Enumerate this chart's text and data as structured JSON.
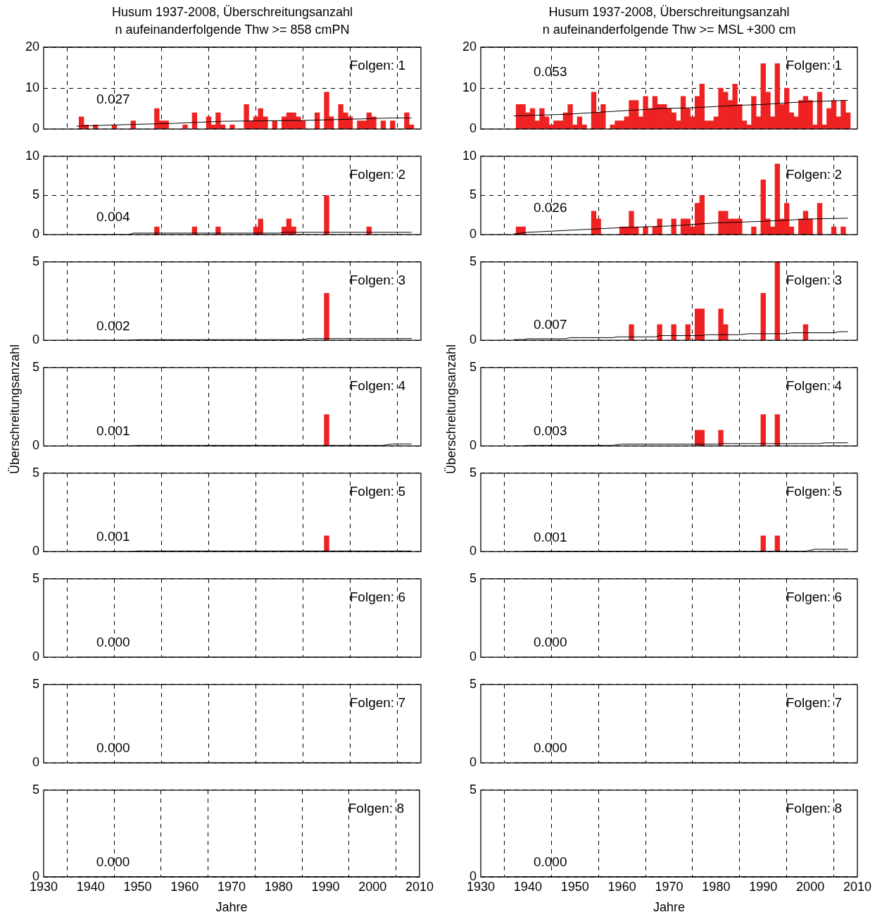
{
  "chart_data": [
    {
      "type": "bar",
      "title": "Husum 1937-2008, Überschreitungsanzahl",
      "subtitle": "n aufeinanderfolgende Thw >= 858 cmPN",
      "series": [
        {
          "type": "bar",
          "color": "#ee2222",
          "x": [
            1938,
            1939,
            1941,
            1945,
            1949,
            1954,
            1955,
            1956,
            1960,
            1962,
            1965,
            1966,
            1967,
            1968,
            1970,
            1973,
            1974,
            1975,
            1976,
            1977,
            1979,
            1981,
            1982,
            1983,
            1984,
            1985,
            1988,
            1990,
            1991,
            1993,
            1994,
            1995,
            1997,
            1998,
            1999,
            2000,
            2002,
            2004,
            2007,
            2008
          ],
          "values": [
            3,
            1,
            1,
            1,
            2,
            5,
            2,
            2,
            1,
            4,
            3,
            1,
            4,
            1,
            1,
            6,
            2,
            3,
            5,
            3,
            2,
            3,
            4,
            4,
            3,
            2,
            4,
            9,
            3,
            6,
            4,
            3,
            2,
            2,
            4,
            3,
            2,
            2,
            4,
            1
          ]
        },
        {
          "type": "line",
          "color": "#000000",
          "x": [
            1937,
            1948,
            1958,
            1968,
            1985,
            1995,
            2004,
            2008
          ],
          "values": [
            0.7,
            1.1,
            1.4,
            1.9,
            2.1,
            2.4,
            2.7,
            2.7
          ]
        }
      ],
      "xlim": [
        1930,
        2010
      ],
      "xticks": [
        1930,
        1940,
        1950,
        1960,
        1970,
        1980,
        1990,
        2000,
        2010
      ],
      "ylim": [
        0,
        20
      ],
      "yticks": [
        0,
        10,
        20
      ],
      "grid": true,
      "tick_labels": "y",
      "annotations": [
        "Folgen: 1",
        "0.027"
      ]
    },
    {
      "type": "bar",
      "title": "Husum 1937-2008, Überschreitungsanzahl",
      "subtitle": "n aufeinanderfolgende Thw >= MSL +300 cm",
      "series": [
        {
          "type": "bar",
          "color": "#ee2222",
          "x": [
            1938,
            1939,
            1940,
            1941,
            1942,
            1943,
            1944,
            1945,
            1946,
            1947,
            1948,
            1949,
            1950,
            1951,
            1952,
            1954,
            1955,
            1956,
            1958,
            1959,
            1960,
            1961,
            1962,
            1963,
            1964,
            1965,
            1966,
            1967,
            1968,
            1969,
            1970,
            1971,
            1972,
            1973,
            1974,
            1975,
            1976,
            1977,
            1978,
            1979,
            1980,
            1981,
            1982,
            1983,
            1984,
            1985,
            1986,
            1987,
            1988,
            1989,
            1990,
            1991,
            1992,
            1993,
            1994,
            1995,
            1996,
            1997,
            1998,
            1999,
            2000,
            2001,
            2002,
            2003,
            2004,
            2005,
            2006,
            2007,
            2008
          ],
          "values": [
            6,
            6,
            4,
            5,
            2,
            5,
            3,
            1,
            2,
            2,
            4,
            6,
            1,
            3,
            1,
            9,
            4,
            6,
            1,
            2,
            2,
            3,
            7,
            7,
            3,
            8,
            5,
            8,
            6,
            6,
            5,
            4,
            2,
            8,
            5,
            3,
            8,
            11,
            2,
            2,
            3,
            10,
            9,
            7,
            11,
            6,
            2,
            1,
            8,
            3,
            16,
            9,
            3,
            16,
            6,
            10,
            4,
            3,
            7,
            8,
            7,
            1,
            9,
            1,
            5,
            7,
            3,
            7,
            4
          ]
        },
        {
          "type": "line",
          "color": "#000000",
          "x": [
            1937,
            1948,
            1958,
            1968,
            1975,
            1980,
            1985,
            1990,
            1995,
            2000,
            2008
          ],
          "values": [
            3.2,
            3.6,
            4.3,
            5.0,
            5.2,
            5.5,
            5.8,
            6.0,
            6.4,
            6.7,
            7.0
          ]
        }
      ],
      "xlim": [
        1930,
        2010
      ],
      "xticks": [
        1930,
        1940,
        1950,
        1960,
        1970,
        1980,
        1990,
        2000,
        2010
      ],
      "ylim": [
        0,
        20
      ],
      "yticks": [
        0,
        10,
        20
      ],
      "grid": true,
      "tick_labels": "y",
      "annotations": [
        "Folgen: 1",
        "0.053"
      ]
    },
    {
      "type": "bar",
      "series": [
        {
          "type": "bar",
          "color": "#ee2222",
          "x": [
            1954,
            1962,
            1967,
            1975,
            1976,
            1981,
            1982,
            1983,
            1990,
            1999
          ],
          "values": [
            1,
            1,
            1,
            1,
            2,
            1,
            2,
            1,
            5,
            1
          ]
        },
        {
          "type": "line",
          "color": "#000000",
          "x": [
            1937,
            1948,
            1949,
            1980,
            1981,
            2008
          ],
          "values": [
            0,
            0,
            0.2,
            0.2,
            0.3,
            0.3
          ]
        }
      ],
      "xlim": [
        1930,
        2010
      ],
      "xticks": [
        1930,
        1940,
        1950,
        1960,
        1970,
        1980,
        1990,
        2000,
        2010
      ],
      "ylim": [
        0,
        10
      ],
      "yticks": [
        0,
        5,
        10
      ],
      "grid": true,
      "tick_labels": "y",
      "annotations": [
        "Folgen: 2",
        "0.004"
      ]
    },
    {
      "type": "bar",
      "series": [
        {
          "type": "bar",
          "color": "#ee2222",
          "x": [
            1938,
            1939,
            1954,
            1955,
            1960,
            1961,
            1962,
            1963,
            1965,
            1967,
            1968,
            1971,
            1973,
            1974,
            1975,
            1976,
            1977,
            1981,
            1982,
            1983,
            1984,
            1985,
            1988,
            1990,
            1991,
            1992,
            1993,
            1994,
            1995,
            1996,
            1998,
            1999,
            2000,
            2002,
            2005,
            2007
          ],
          "values": [
            1,
            1,
            3,
            2,
            1,
            1,
            3,
            1,
            1,
            1,
            2,
            2,
            2,
            2,
            1,
            4,
            5,
            3,
            3,
            2,
            2,
            2,
            1,
            7,
            2,
            1,
            9,
            2,
            4,
            1,
            2,
            3,
            2,
            4,
            1,
            1
          ]
        },
        {
          "type": "line",
          "color": "#000000",
          "x": [
            1937,
            1940,
            1950,
            1960,
            1970,
            1980,
            1990,
            2000,
            2008
          ],
          "values": [
            0.1,
            0.3,
            0.6,
            0.9,
            1.1,
            1.5,
            1.7,
            2.0,
            2.1
          ]
        }
      ],
      "xlim": [
        1930,
        2010
      ],
      "xticks": [
        1930,
        1940,
        1950,
        1960,
        1970,
        1980,
        1990,
        2000,
        2010
      ],
      "ylim": [
        0,
        10
      ],
      "yticks": [
        0,
        5,
        10
      ],
      "grid": true,
      "tick_labels": "y",
      "annotations": [
        "Folgen: 2",
        "0.026"
      ]
    },
    {
      "type": "bar",
      "series": [
        {
          "type": "bar",
          "color": "#ee2222",
          "x": [
            1990
          ],
          "values": [
            3
          ]
        },
        {
          "type": "line",
          "color": "#000000",
          "x": [
            1937,
            1948,
            1950,
            1985,
            1986,
            2008
          ],
          "values": [
            0,
            0,
            0.04,
            0.04,
            0.11,
            0.11
          ]
        }
      ],
      "xlim": [
        1930,
        2010
      ],
      "xticks": [
        1930,
        1940,
        1950,
        1960,
        1970,
        1980,
        1990,
        2000,
        2010
      ],
      "ylim": [
        0,
        5
      ],
      "yticks": [
        0,
        5
      ],
      "grid": true,
      "tick_labels": "y",
      "annotations": [
        "Folgen: 3",
        "0.002"
      ]
    },
    {
      "type": "bar",
      "series": [
        {
          "type": "bar",
          "color": "#ee2222",
          "x": [
            1962,
            1968,
            1971,
            1974,
            1976,
            1977,
            1981,
            1982,
            1990,
            1993,
            1999
          ],
          "values": [
            1,
            1,
            1,
            1,
            2,
            2,
            2,
            1,
            3,
            5,
            1
          ]
        },
        {
          "type": "line",
          "color": "#000000",
          "x": [
            1937,
            1939,
            1940,
            1948,
            1949,
            1958,
            1959,
            1967,
            1968,
            1977,
            1978,
            1985,
            1987,
            1995,
            1996,
            2005,
            2006,
            2008
          ],
          "values": [
            0.05,
            0.05,
            0.1,
            0.1,
            0.17,
            0.17,
            0.22,
            0.22,
            0.3,
            0.3,
            0.36,
            0.36,
            0.42,
            0.42,
            0.48,
            0.48,
            0.55,
            0.55
          ]
        }
      ],
      "xlim": [
        1930,
        2010
      ],
      "xticks": [
        1930,
        1940,
        1950,
        1960,
        1970,
        1980,
        1990,
        2000,
        2010
      ],
      "ylim": [
        0,
        5
      ],
      "yticks": [
        0,
        5
      ],
      "grid": true,
      "tick_labels": "y",
      "annotations": [
        "Folgen: 3",
        "0.007"
      ]
    },
    {
      "type": "bar",
      "ylabel": "Überschreitungsanzahl",
      "series": [
        {
          "type": "bar",
          "color": "#ee2222",
          "x": [
            1990
          ],
          "values": [
            2
          ]
        },
        {
          "type": "line",
          "color": "#000000",
          "x": [
            1937,
            1948,
            1950,
            2002,
            2004,
            2008
          ],
          "values": [
            0,
            0,
            0.04,
            0.04,
            0.13,
            0.13
          ]
        }
      ],
      "xlim": [
        1930,
        2010
      ],
      "xticks": [
        1930,
        1940,
        1950,
        1960,
        1970,
        1980,
        1990,
        2000,
        2010
      ],
      "ylim": [
        0,
        5
      ],
      "yticks": [
        0,
        5
      ],
      "grid": true,
      "tick_labels": "y",
      "annotations": [
        "Folgen: 4",
        "0.001"
      ]
    },
    {
      "type": "bar",
      "ylabel": "Überschreitungsanzahl",
      "series": [
        {
          "type": "bar",
          "color": "#ee2222",
          "x": [
            1976,
            1977,
            1981,
            1990,
            1993
          ],
          "values": [
            1,
            1,
            1,
            2,
            2
          ]
        },
        {
          "type": "line",
          "color": "#000000",
          "x": [
            1937,
            1939,
            1940,
            1958,
            1960,
            1980,
            1981,
            2002,
            2003,
            2008
          ],
          "values": [
            0,
            0,
            0.04,
            0.04,
            0.12,
            0.12,
            0.15,
            0.15,
            0.2,
            0.2
          ]
        }
      ],
      "xlim": [
        1930,
        2010
      ],
      "xticks": [
        1930,
        1940,
        1950,
        1960,
        1970,
        1980,
        1990,
        2000,
        2010
      ],
      "ylim": [
        0,
        5
      ],
      "yticks": [
        0,
        5
      ],
      "grid": true,
      "tick_labels": "y",
      "annotations": [
        "Folgen: 4",
        "0.003"
      ]
    },
    {
      "type": "bar",
      "series": [
        {
          "type": "bar",
          "color": "#ee2222",
          "x": [
            1990
          ],
          "values": [
            1
          ]
        },
        {
          "type": "line",
          "color": "#000000",
          "x": [
            1937,
            1948,
            1950,
            2008
          ],
          "values": [
            0,
            0,
            0.04,
            0.04
          ]
        }
      ],
      "xlim": [
        1930,
        2010
      ],
      "xticks": [
        1930,
        1940,
        1950,
        1960,
        1970,
        1980,
        1990,
        2000,
        2010
      ],
      "ylim": [
        0,
        5
      ],
      "yticks": [
        0,
        5
      ],
      "grid": true,
      "tick_labels": "y",
      "annotations": [
        "Folgen: 5",
        "0.001"
      ]
    },
    {
      "type": "bar",
      "series": [
        {
          "type": "bar",
          "color": "#ee2222",
          "x": [
            1990,
            1993
          ],
          "values": [
            1,
            1
          ]
        },
        {
          "type": "line",
          "color": "#000000",
          "x": [
            1937,
            1939,
            1940,
            1999,
            2001,
            2008
          ],
          "values": [
            0,
            0,
            0.02,
            0.02,
            0.15,
            0.15
          ]
        }
      ],
      "xlim": [
        1930,
        2010
      ],
      "xticks": [
        1930,
        1940,
        1950,
        1960,
        1970,
        1980,
        1990,
        2000,
        2010
      ],
      "ylim": [
        0,
        5
      ],
      "yticks": [
        0,
        5
      ],
      "grid": true,
      "tick_labels": "y",
      "annotations": [
        "Folgen: 5",
        "0.001"
      ]
    },
    {
      "type": "bar",
      "series": [
        {
          "type": "line",
          "color": "#000000",
          "x": [
            1937,
            2008
          ],
          "values": [
            0,
            0
          ]
        }
      ],
      "xlim": [
        1930,
        2010
      ],
      "xticks": [
        1930,
        1940,
        1950,
        1960,
        1970,
        1980,
        1990,
        2000,
        2010
      ],
      "ylim": [
        0,
        5
      ],
      "yticks": [
        0,
        5
      ],
      "grid": true,
      "tick_labels": "y",
      "annotations": [
        "Folgen: 6",
        "0.000"
      ]
    },
    {
      "type": "bar",
      "series": [
        {
          "type": "line",
          "color": "#000000",
          "x": [
            1937,
            2008
          ],
          "values": [
            0,
            0
          ]
        }
      ],
      "xlim": [
        1930,
        2010
      ],
      "xticks": [
        1930,
        1940,
        1950,
        1960,
        1970,
        1980,
        1990,
        2000,
        2010
      ],
      "ylim": [
        0,
        5
      ],
      "yticks": [
        0,
        5
      ],
      "grid": true,
      "tick_labels": "y",
      "annotations": [
        "Folgen: 6",
        "0.000"
      ]
    },
    {
      "type": "bar",
      "series": [
        {
          "type": "line",
          "color": "#000000",
          "x": [
            1937,
            2008
          ],
          "values": [
            0,
            0
          ]
        }
      ],
      "xlim": [
        1930,
        2010
      ],
      "xticks": [
        1930,
        1940,
        1950,
        1960,
        1970,
        1980,
        1990,
        2000,
        2010
      ],
      "ylim": [
        0,
        5
      ],
      "yticks": [
        0,
        5
      ],
      "grid": true,
      "tick_labels": "y",
      "annotations": [
        "Folgen: 7",
        "0.000"
      ]
    },
    {
      "type": "bar",
      "series": [
        {
          "type": "line",
          "color": "#000000",
          "x": [
            1937,
            2008
          ],
          "values": [
            0,
            0
          ]
        }
      ],
      "xlim": [
        1930,
        2010
      ],
      "xticks": [
        1930,
        1940,
        1950,
        1960,
        1970,
        1980,
        1990,
        2000,
        2010
      ],
      "ylim": [
        0,
        5
      ],
      "yticks": [
        0,
        5
      ],
      "grid": true,
      "tick_labels": "y",
      "annotations": [
        "Folgen: 7",
        "0.000"
      ]
    },
    {
      "type": "bar",
      "xlabel": "Jahre",
      "series": [
        {
          "type": "line",
          "color": "#000000",
          "x": [
            1937,
            2008
          ],
          "values": [
            0,
            0
          ]
        }
      ],
      "xlim": [
        1930,
        2010
      ],
      "xticks": [
        1930,
        1940,
        1950,
        1960,
        1970,
        1980,
        1990,
        2000,
        2010
      ],
      "ylim": [
        0,
        5
      ],
      "yticks": [
        0,
        5
      ],
      "grid": true,
      "annotations": [
        "Folgen: 8",
        "0.000"
      ]
    },
    {
      "type": "bar",
      "xlabel": "Jahre",
      "series": [
        {
          "type": "line",
          "color": "#000000",
          "x": [
            1937,
            2008
          ],
          "values": [
            0,
            0
          ]
        }
      ],
      "xlim": [
        1930,
        2010
      ],
      "xticks": [
        1930,
        1940,
        1950,
        1960,
        1970,
        1980,
        1990,
        2000,
        2010
      ],
      "ylim": [
        0,
        5
      ],
      "yticks": [
        0,
        5
      ],
      "grid": true,
      "annotations": [
        "Folgen: 8",
        "0.000"
      ]
    }
  ]
}
